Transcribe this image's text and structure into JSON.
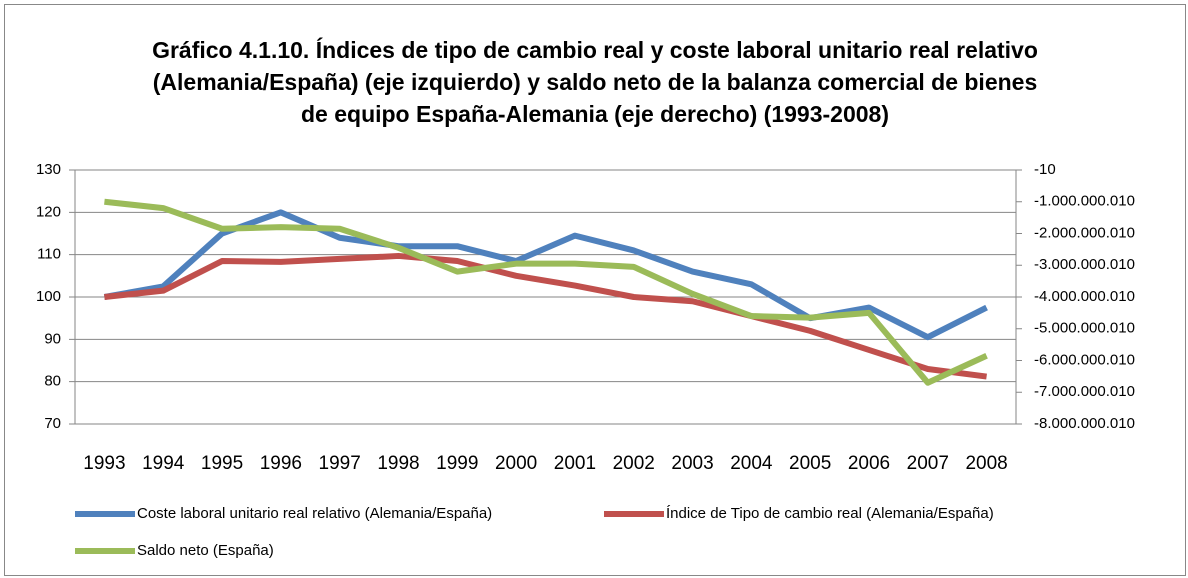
{
  "chart_data": {
    "type": "line",
    "title": "Gráfico 4.1.10. Índices de tipo de cambio real y coste laboral unitario real relativo (Alemania/España) (eje izquierdo) y saldo neto de la balanza comercial de bienes de equipo España-Alemania (eje derecho) (1993-2008)",
    "categories": [
      "1993",
      "1994",
      "1995",
      "1996",
      "1997",
      "1998",
      "1999",
      "2000",
      "2001",
      "2002",
      "2003",
      "2004",
      "2005",
      "2006",
      "2007",
      "2008"
    ],
    "ylim": [
      70,
      130
    ],
    "yticks": [
      70,
      80,
      90,
      100,
      110,
      120,
      130
    ],
    "y2lim": [
      -8000000010,
      -10
    ],
    "y2ticks": [
      {
        "value": -8000000010,
        "label": "-8.000.000.010"
      },
      {
        "value": -7000000010,
        "label": "-7.000.000.010"
      },
      {
        "value": -6000000010,
        "label": "-6.000.000.010"
      },
      {
        "value": -5000000010,
        "label": "-5.000.000.010"
      },
      {
        "value": -4000000010,
        "label": "-4.000.000.010"
      },
      {
        "value": -3000000010,
        "label": "-3.000.000.010"
      },
      {
        "value": -2000000010,
        "label": "-2.000.000.010"
      },
      {
        "value": -1000000010,
        "label": "-1.000.000.010"
      },
      -10
    ],
    "grid": true,
    "legend": "bottom",
    "series": [
      {
        "name": "Coste laboral unitario real relativo (Alemania/España)",
        "color": "#4f81bd",
        "values": [
          100,
          102.5,
          115,
          120,
          114,
          112,
          112,
          108.5,
          114.5,
          111,
          106,
          103,
          95,
          97.5,
          90.5,
          97.5
        ]
      },
      {
        "name": "Índice de Tipo de cambio real (Alemania/España)",
        "color": "#c0504d",
        "values": [
          100,
          101.5,
          108.5,
          108.3,
          109,
          109.7,
          108.5,
          105,
          102.7,
          100,
          99,
          95.5,
          92,
          87.5,
          83,
          81.2
        ]
      },
      {
        "name": "Saldo neto (España)",
        "color": "#9bbb59",
        "axis": "y2",
        "values": [
          -1000000000,
          -1200000000,
          -1850000000,
          -1800000000,
          -1850000000,
          -2450000000,
          -3200000000,
          -2950000000,
          -2950000000,
          -3050000000,
          -3900000000,
          -4600000000,
          -4650000000,
          -4500000000,
          -6700000000,
          -5850000000
        ]
      }
    ]
  }
}
